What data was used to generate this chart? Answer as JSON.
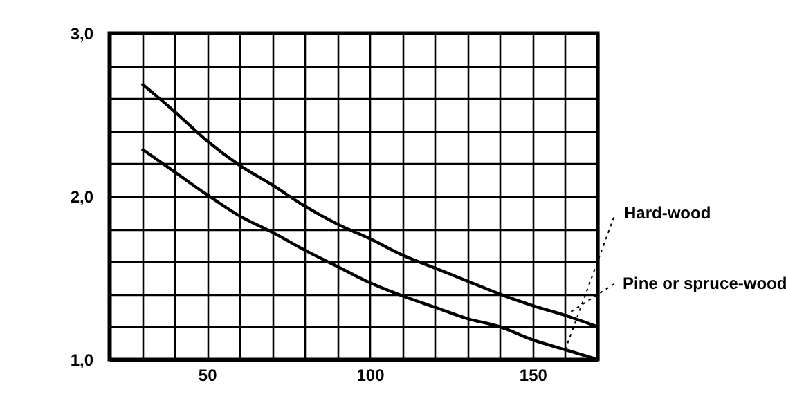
{
  "chart_data": {
    "type": "line",
    "x": [
      30,
      40,
      50,
      60,
      70,
      80,
      90,
      100,
      110,
      120,
      130,
      140,
      150,
      160,
      170
    ],
    "series": [
      {
        "name": "Hard-wood",
        "color": "#000000",
        "values": [
          2.29,
          2.15,
          2.01,
          1.88,
          1.78,
          1.67,
          1.57,
          1.47,
          1.39,
          1.32,
          1.25,
          1.2,
          1.12,
          1.06,
          1.0
        ]
      },
      {
        "name": "Pine or spruce-wood",
        "color": "#000000",
        "values": [
          2.69,
          2.52,
          2.34,
          2.19,
          2.07,
          1.94,
          1.83,
          1.74,
          1.64,
          1.56,
          1.48,
          1.4,
          1.33,
          1.27,
          1.2
        ]
      }
    ],
    "xlim": [
      20,
      170
    ],
    "xticks": [
      {
        "value": 20,
        "label": null
      },
      {
        "value": 30,
        "label": null
      },
      {
        "value": 40,
        "label": null
      },
      50,
      {
        "value": 60,
        "label": null
      },
      {
        "value": 70,
        "label": null
      },
      {
        "value": 80,
        "label": null
      },
      {
        "value": 90,
        "label": null
      },
      100,
      {
        "value": 110,
        "label": null
      },
      {
        "value": 120,
        "label": null
      },
      {
        "value": 130,
        "label": null
      },
      {
        "value": 140,
        "label": null
      },
      150,
      {
        "value": 160,
        "label": null
      },
      {
        "value": 170,
        "label": null
      }
    ],
    "ylim": [
      1,
      3
    ],
    "yticks": [
      {
        "value": 1,
        "label": "1,0"
      },
      {
        "value": 1.2,
        "label": null
      },
      {
        "value": 1.4,
        "label": null
      },
      {
        "value": 1.6,
        "label": null
      },
      {
        "value": 1.8,
        "label": null
      },
      {
        "value": 2,
        "label": "2,0"
      },
      {
        "value": 2.2,
        "label": null
      },
      {
        "value": 2.4,
        "label": null
      },
      {
        "value": 2.6,
        "label": null
      },
      {
        "value": 2.8,
        "label": null
      },
      {
        "value": 3,
        "label": "3,0"
      }
    ],
    "grid": true,
    "legend": false,
    "marker": "none",
    "line_style": "solid"
  }
}
